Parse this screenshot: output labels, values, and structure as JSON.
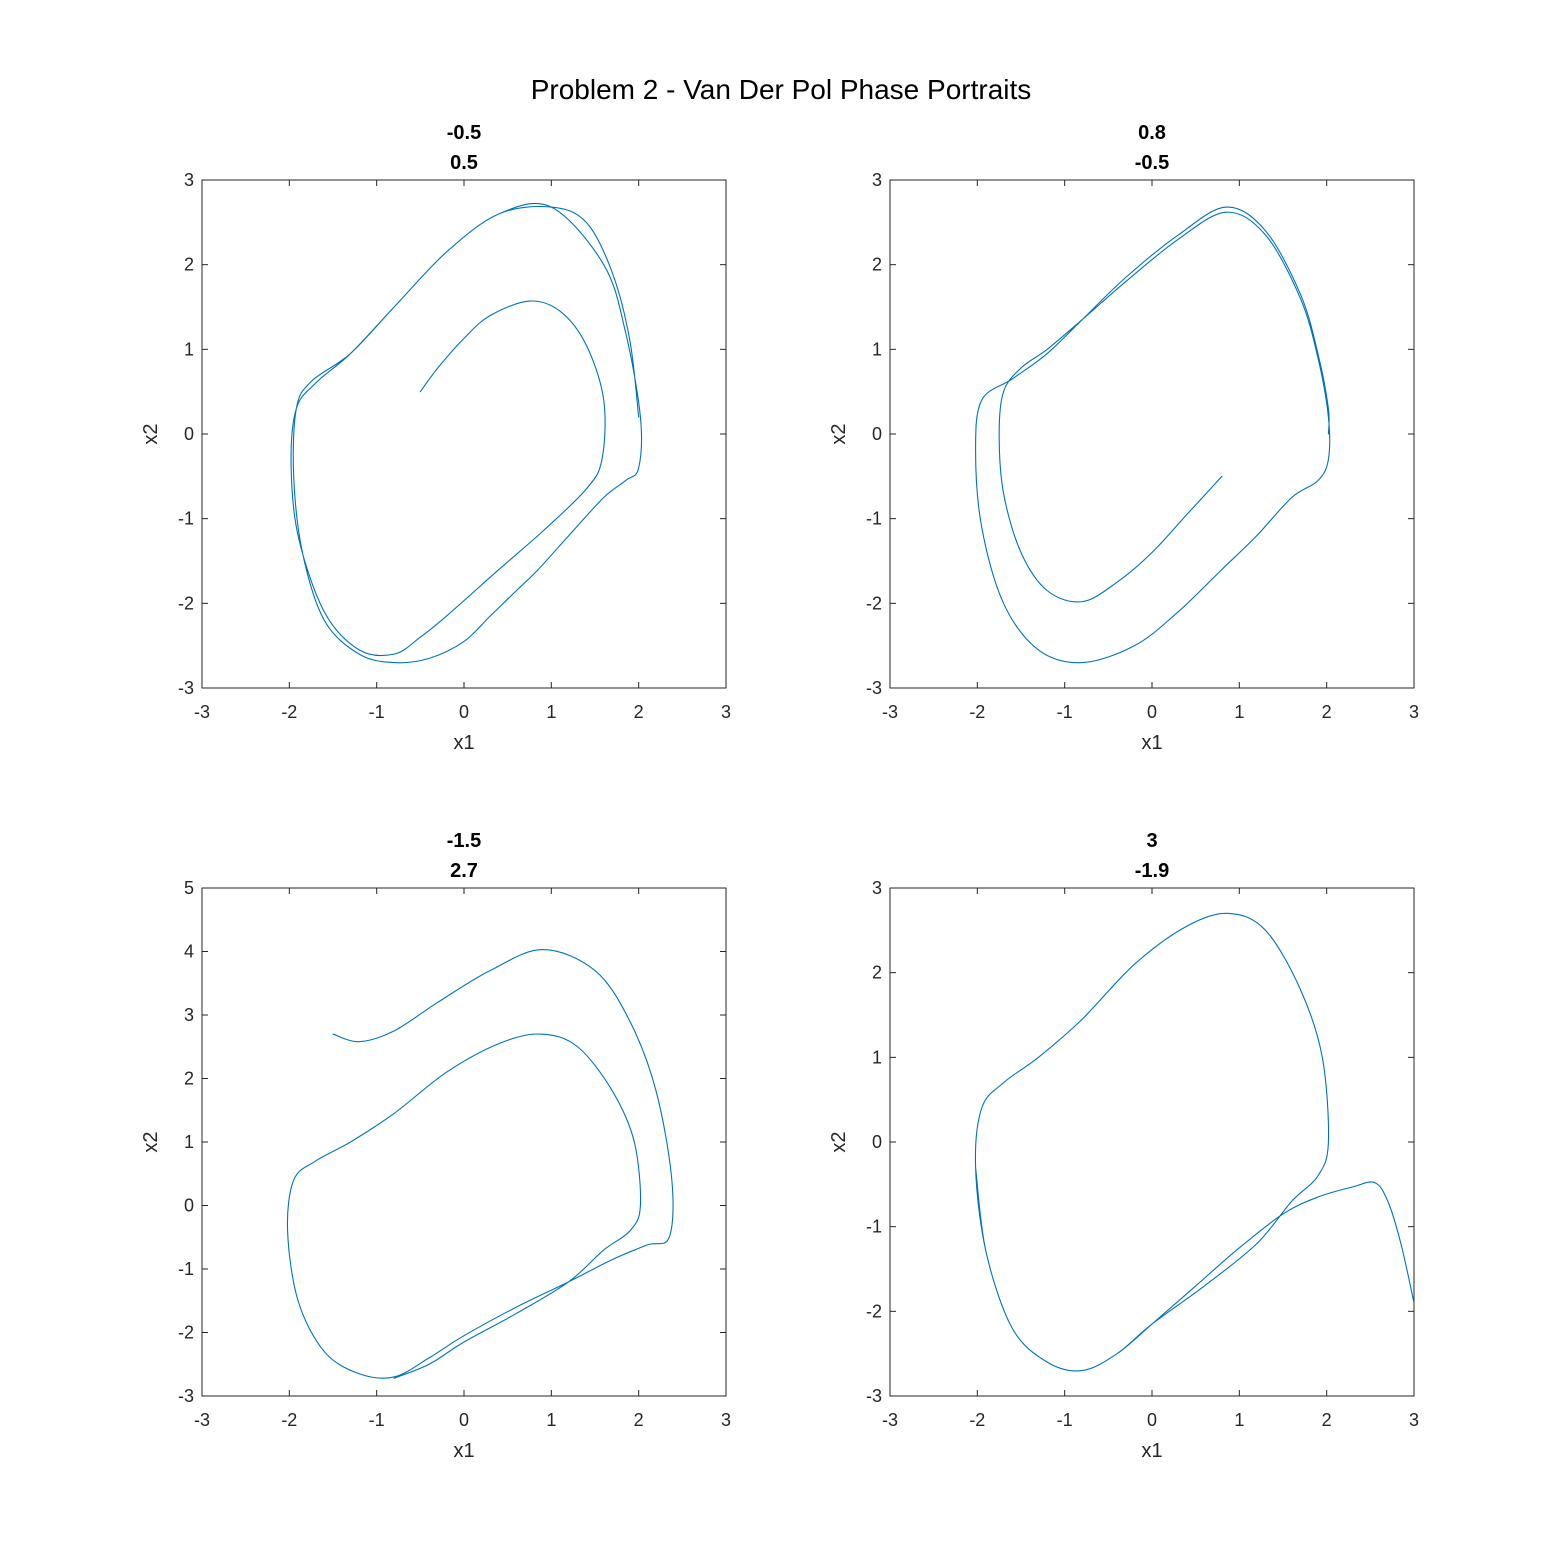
{
  "figure": {
    "title": "Problem 2 - Van Der Pol Phase Portraits",
    "line_color": "#0072bd"
  },
  "chart_data": [
    {
      "type": "line",
      "title_lines": [
        "-0.5",
        "0.5"
      ],
      "xlabel": "x1",
      "ylabel": "x2",
      "xlim": [
        -3,
        3
      ],
      "ylim": [
        -3,
        3
      ],
      "xticks": [
        -3,
        -2,
        -1,
        0,
        1,
        2,
        3
      ],
      "yticks": [
        -3,
        -2,
        -1,
        0,
        1,
        2,
        3
      ],
      "series": [
        {
          "x": [
            -0.5,
            -0.3,
            0.0,
            0.3,
            0.75,
            1.1,
            1.4,
            1.6,
            1.58,
            1.4,
            0.9,
            0.4,
            -0.2,
            -0.5,
            -0.8,
            -1.2,
            -1.6,
            -1.9,
            -1.98,
            -1.92,
            -1.7,
            -1.3,
            -0.8,
            -0.2,
            0.4,
            1.0,
            1.6,
            1.85,
            2.02,
            2.0,
            1.85,
            1.6,
            1.2,
            0.85,
            0.6,
            0.3,
            0.0,
            -0.4,
            -0.8,
            -1.2,
            -1.6,
            -1.85,
            -1.95,
            -1.92,
            -1.75,
            -1.3,
            -0.8,
            -0.2,
            0.4,
            1.0,
            1.4,
            1.7,
            1.9,
            2.0
          ],
          "y": [
            0.5,
            0.78,
            1.13,
            1.4,
            1.57,
            1.45,
            1.05,
            0.4,
            -0.3,
            -0.65,
            -1.15,
            -1.6,
            -2.15,
            -2.4,
            -2.6,
            -2.55,
            -2.1,
            -1.2,
            -0.35,
            0.3,
            0.6,
            0.95,
            1.5,
            2.15,
            2.6,
            2.68,
            2.0,
            1.2,
            0.2,
            -0.4,
            -0.55,
            -0.75,
            -1.2,
            -1.6,
            -1.85,
            -2.15,
            -2.45,
            -2.65,
            -2.7,
            -2.6,
            -2.2,
            -1.4,
            -0.5,
            0.3,
            0.62,
            0.95,
            1.5,
            2.15,
            2.6,
            2.68,
            2.5,
            1.9,
            1.1,
            0.2
          ]
        }
      ]
    },
    {
      "type": "line",
      "title_lines": [
        "0.8",
        "-0.5"
      ],
      "xlabel": "x1",
      "ylabel": "x2",
      "xlim": [
        -3,
        3
      ],
      "ylim": [
        -3,
        3
      ],
      "xticks": [
        -3,
        -2,
        -1,
        0,
        1,
        2,
        3
      ],
      "yticks": [
        -3,
        -2,
        -1,
        0,
        1,
        2,
        3
      ],
      "series": [
        {
          "x": [
            0.8,
            0.4,
            0.0,
            -0.4,
            -0.8,
            -1.2,
            -1.5,
            -1.7,
            -1.75,
            -1.7,
            -1.5,
            -1.2,
            -0.8,
            -0.3,
            0.3,
            0.85,
            1.3,
            1.7,
            1.9,
            2.02,
            2.02,
            1.9,
            1.6,
            1.2,
            0.8,
            0.3,
            -0.2,
            -0.8,
            -1.3,
            -1.7,
            -1.95,
            -2.02,
            -1.95,
            -1.6,
            -1.2,
            -0.8,
            -0.3,
            0.3,
            0.85,
            1.3,
            1.7,
            1.9,
            2.02,
            2.02
          ],
          "y": [
            -0.5,
            -0.95,
            -1.4,
            -1.75,
            -1.98,
            -1.85,
            -1.4,
            -0.7,
            0.0,
            0.5,
            0.78,
            1.0,
            1.35,
            1.8,
            2.3,
            2.62,
            2.35,
            1.6,
            0.9,
            0.2,
            -0.3,
            -0.55,
            -0.75,
            -1.2,
            -1.6,
            -2.1,
            -2.5,
            -2.7,
            -2.55,
            -2.0,
            -1.1,
            -0.2,
            0.4,
            0.65,
            0.95,
            1.35,
            1.85,
            2.35,
            2.68,
            2.4,
            1.65,
            0.95,
            0.3,
            0.0
          ]
        }
      ]
    },
    {
      "type": "line",
      "title_lines": [
        "-1.5",
        "2.7"
      ],
      "xlabel": "x1",
      "ylabel": "x2",
      "xlim": [
        -3,
        3
      ],
      "ylim": [
        -3,
        5
      ],
      "xticks": [
        -3,
        -2,
        -1,
        0,
        1,
        2,
        3
      ],
      "yticks": [
        -3,
        -2,
        -1,
        0,
        1,
        2,
        3,
        4,
        5
      ],
      "series": [
        {
          "x": [
            -1.5,
            -1.2,
            -0.8,
            -0.3,
            0.3,
            0.9,
            1.5,
            1.9,
            2.2,
            2.38,
            2.35,
            2.1,
            1.7,
            1.2,
            0.6,
            0.0,
            -0.4,
            -0.8,
            -1.2,
            -1.6,
            -1.9,
            -2.02,
            -1.95,
            -1.7,
            -1.3,
            -0.8,
            -0.2,
            0.4,
            0.88,
            1.3,
            1.7,
            1.95,
            2.02,
            1.9,
            1.6,
            1.2,
            0.6,
            0.0,
            -0.4,
            -0.8
          ],
          "y": [
            2.7,
            2.58,
            2.75,
            3.2,
            3.7,
            4.03,
            3.7,
            2.9,
            1.8,
            0.4,
            -0.5,
            -0.62,
            -0.85,
            -1.2,
            -1.6,
            -2.05,
            -2.4,
            -2.7,
            -2.65,
            -2.3,
            -1.5,
            -0.4,
            0.4,
            0.7,
            1.0,
            1.45,
            2.1,
            2.55,
            2.7,
            2.5,
            1.8,
            1.0,
            0.0,
            -0.4,
            -0.7,
            -1.2,
            -1.7,
            -2.15,
            -2.5,
            -2.72
          ]
        }
      ]
    },
    {
      "type": "line",
      "title_lines": [
        "3",
        "-1.9"
      ],
      "xlabel": "x1",
      "ylabel": "x2",
      "xlim": [
        -3,
        3
      ],
      "ylim": [
        -3,
        3
      ],
      "xticks": [
        -3,
        -2,
        -1,
        0,
        1,
        2,
        3
      ],
      "yticks": [
        -3,
        -2,
        -1,
        0,
        1,
        2,
        3
      ],
      "series": [
        {
          "x": [
            3.0,
            2.85,
            2.7,
            2.55,
            2.3,
            1.9,
            1.5,
            1.0,
            0.5,
            0.0,
            -0.4,
            -0.8,
            -1.2,
            -1.6,
            -1.9,
            -2.02,
            -1.95,
            -1.7,
            -1.3,
            -0.8,
            -0.2,
            0.4,
            0.88,
            1.3,
            1.7,
            1.95,
            2.02,
            1.9,
            1.6,
            1.2,
            0.6,
            0.0,
            -0.4,
            -0.8,
            -1.2,
            -1.6,
            -1.9,
            -2.02
          ],
          "y": [
            -1.9,
            -1.2,
            -0.7,
            -0.48,
            -0.53,
            -0.65,
            -0.85,
            -1.25,
            -1.7,
            -2.15,
            -2.5,
            -2.7,
            -2.6,
            -2.2,
            -1.3,
            -0.3,
            0.4,
            0.7,
            1.0,
            1.45,
            2.1,
            2.55,
            2.7,
            2.5,
            1.8,
            1.0,
            0.0,
            -0.4,
            -0.7,
            -1.2,
            -1.7,
            -2.15,
            -2.5,
            -2.7,
            -2.6,
            -2.2,
            -1.3,
            -0.3
          ]
        }
      ]
    }
  ]
}
